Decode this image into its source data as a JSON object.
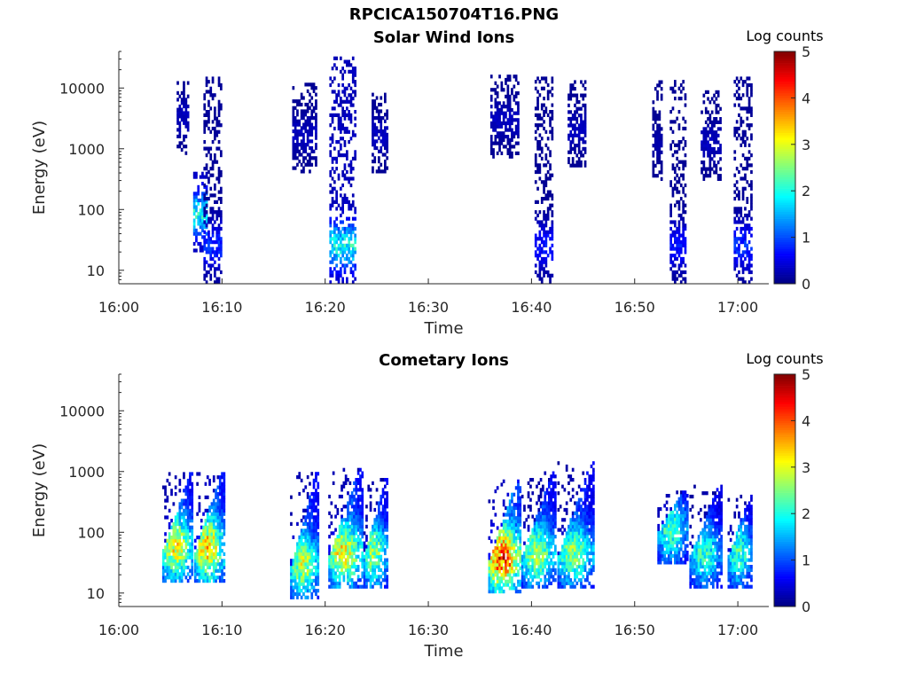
{
  "title": "RPCICA150704T16.PNG",
  "chart_data": [
    {
      "type": "heatmap",
      "title": "Solar Wind Ions",
      "xlabel": "Time",
      "ylabel": "Energy (eV)",
      "x_tick_labels": [
        "16:00",
        "16:10",
        "16:20",
        "16:30",
        "16:40",
        "16:50",
        "17:00"
      ],
      "xlim": [
        "16:00",
        "17:03"
      ],
      "y_tick_labels": [
        "10",
        "100",
        "1000",
        "10000"
      ],
      "ylim": [
        6,
        40000
      ],
      "y_scale": "log",
      "colorbar": {
        "label": "Log counts",
        "range": [
          0,
          5
        ],
        "tick_labels": [
          "0",
          "1",
          "2",
          "3",
          "4",
          "5"
        ],
        "colormap": "jet"
      },
      "bursts": [
        {
          "start": "16:05.6",
          "end": "16:06.8",
          "emin": 800,
          "emax": 12000,
          "peak_log_counts": 0.3
        },
        {
          "start": "16:07.2",
          "end": "16:08.5",
          "emin": 20,
          "emax": 400,
          "peak_log_counts": 1.9
        },
        {
          "start": "16:08.2",
          "end": "16:10.0",
          "emin": 6,
          "emax": 15000,
          "peak_log_counts": 0.8
        },
        {
          "start": "16:16.8",
          "end": "16:19.2",
          "emin": 400,
          "emax": 12000,
          "peak_log_counts": 0.3
        },
        {
          "start": "16:20.4",
          "end": "16:23.0",
          "emin": 6,
          "emax": 30000,
          "peak_log_counts": 1.9
        },
        {
          "start": "16:24.5",
          "end": "16:26.0",
          "emin": 400,
          "emax": 8000,
          "peak_log_counts": 0.3
        },
        {
          "start": "16:36.0",
          "end": "16:38.7",
          "emin": 700,
          "emax": 15000,
          "peak_log_counts": 0.3
        },
        {
          "start": "16:40.3",
          "end": "16:42.0",
          "emin": 6,
          "emax": 15000,
          "peak_log_counts": 0.7
        },
        {
          "start": "16:43.5",
          "end": "16:45.2",
          "emin": 500,
          "emax": 12000,
          "peak_log_counts": 0.3
        },
        {
          "start": "16:51.7",
          "end": "16:52.7",
          "emin": 300,
          "emax": 15000,
          "peak_log_counts": 0.2
        },
        {
          "start": "16:53.4",
          "end": "16:55.0",
          "emin": 6,
          "emax": 12000,
          "peak_log_counts": 0.7
        },
        {
          "start": "16:56.4",
          "end": "16:58.3",
          "emin": 300,
          "emax": 9000,
          "peak_log_counts": 0.3
        },
        {
          "start": "16:59.6",
          "end": "17:01.4",
          "emin": 6,
          "emax": 15000,
          "peak_log_counts": 0.8
        }
      ]
    },
    {
      "type": "heatmap",
      "title": "Cometary Ions",
      "xlabel": "Time",
      "ylabel": "Energy (eV)",
      "x_tick_labels": [
        "16:00",
        "16:10",
        "16:20",
        "16:30",
        "16:40",
        "16:50",
        "17:00"
      ],
      "xlim": [
        "16:00",
        "17:03"
      ],
      "y_tick_labels": [
        "10",
        "100",
        "1000",
        "10000"
      ],
      "ylim": [
        6,
        40000
      ],
      "y_scale": "log",
      "colorbar": {
        "label": "Log counts",
        "range": [
          0,
          5
        ],
        "tick_labels": [
          "0",
          "1",
          "2",
          "3",
          "4",
          "5"
        ],
        "colormap": "jet"
      },
      "bursts": [
        {
          "start": "16:04.2",
          "end": "16:07.2",
          "emin": 15,
          "emax": 900,
          "peak_log_counts": 3.0
        },
        {
          "start": "16:07.3",
          "end": "16:10.2",
          "emin": 15,
          "emax": 900,
          "peak_log_counts": 3.3
        },
        {
          "start": "16:16.6",
          "end": "16:19.3",
          "emin": 8,
          "emax": 900,
          "peak_log_counts": 2.8
        },
        {
          "start": "16:20.3",
          "end": "16:23.6",
          "emin": 12,
          "emax": 1100,
          "peak_log_counts": 3.1
        },
        {
          "start": "16:23.7",
          "end": "16:26.0",
          "emin": 12,
          "emax": 700,
          "peak_log_counts": 2.6
        },
        {
          "start": "16:35.8",
          "end": "16:38.9",
          "emin": 10,
          "emax": 700,
          "peak_log_counts": 4.0
        },
        {
          "start": "16:39.0",
          "end": "16:42.4",
          "emin": 12,
          "emax": 1000,
          "peak_log_counts": 2.6
        },
        {
          "start": "16:42.5",
          "end": "16:46.0",
          "emin": 12,
          "emax": 1400,
          "peak_log_counts": 2.5
        },
        {
          "start": "16:52.2",
          "end": "16:55.2",
          "emin": 30,
          "emax": 450,
          "peak_log_counts": 2.2
        },
        {
          "start": "16:55.3",
          "end": "16:58.5",
          "emin": 12,
          "emax": 550,
          "peak_log_counts": 2.1
        },
        {
          "start": "16:59.0",
          "end": "17:01.4",
          "emin": 12,
          "emax": 380,
          "peak_log_counts": 2.2
        }
      ]
    }
  ]
}
